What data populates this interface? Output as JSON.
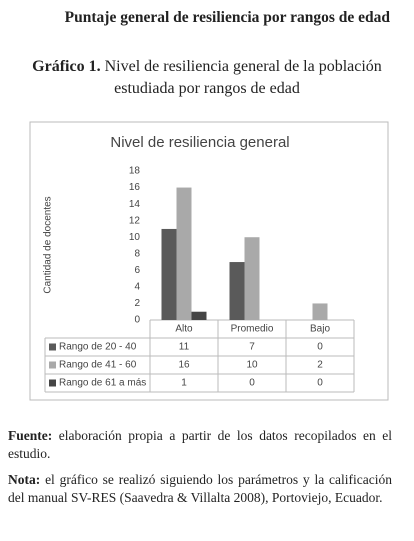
{
  "heading": "Puntaje general de resiliencia por rangos de edad",
  "figure": {
    "label": "Gráfico 1.",
    "caption_line1": "Nivel de resiliencia general de la población",
    "caption_line2": "estudiada por rangos de edad"
  },
  "chart_data": {
    "type": "bar",
    "title": "Nivel de resiliencia general",
    "y_label": "Cantidad de docentes",
    "categories": [
      "Alto",
      "Promedio",
      "Bajo"
    ],
    "series": [
      {
        "name": "Rango de 20 - 40",
        "color": "#5a5a5a",
        "values": [
          11,
          7,
          0
        ]
      },
      {
        "name": "Rango de 41 - 60",
        "color": "#a9a9a9",
        "values": [
          16,
          10,
          2
        ]
      },
      {
        "name": "Rango de 61 a más",
        "color": "#454545",
        "values": [
          1,
          0,
          0
        ]
      }
    ],
    "ylim": [
      0,
      18
    ],
    "yticks": [
      0,
      2,
      4,
      6,
      8,
      10,
      12,
      14,
      16,
      18
    ]
  },
  "notes": [
    {
      "label": "Fuente:",
      "text": "elaboración propia a partir de los datos recopilados en el estudio."
    },
    {
      "label": "Nota:",
      "text": "el gráfico se realizó siguiendo los parámetros y la calificación del manual SV-RES (Saavedra & Villalta 2008), Portoviejo, Ecuador."
    }
  ]
}
